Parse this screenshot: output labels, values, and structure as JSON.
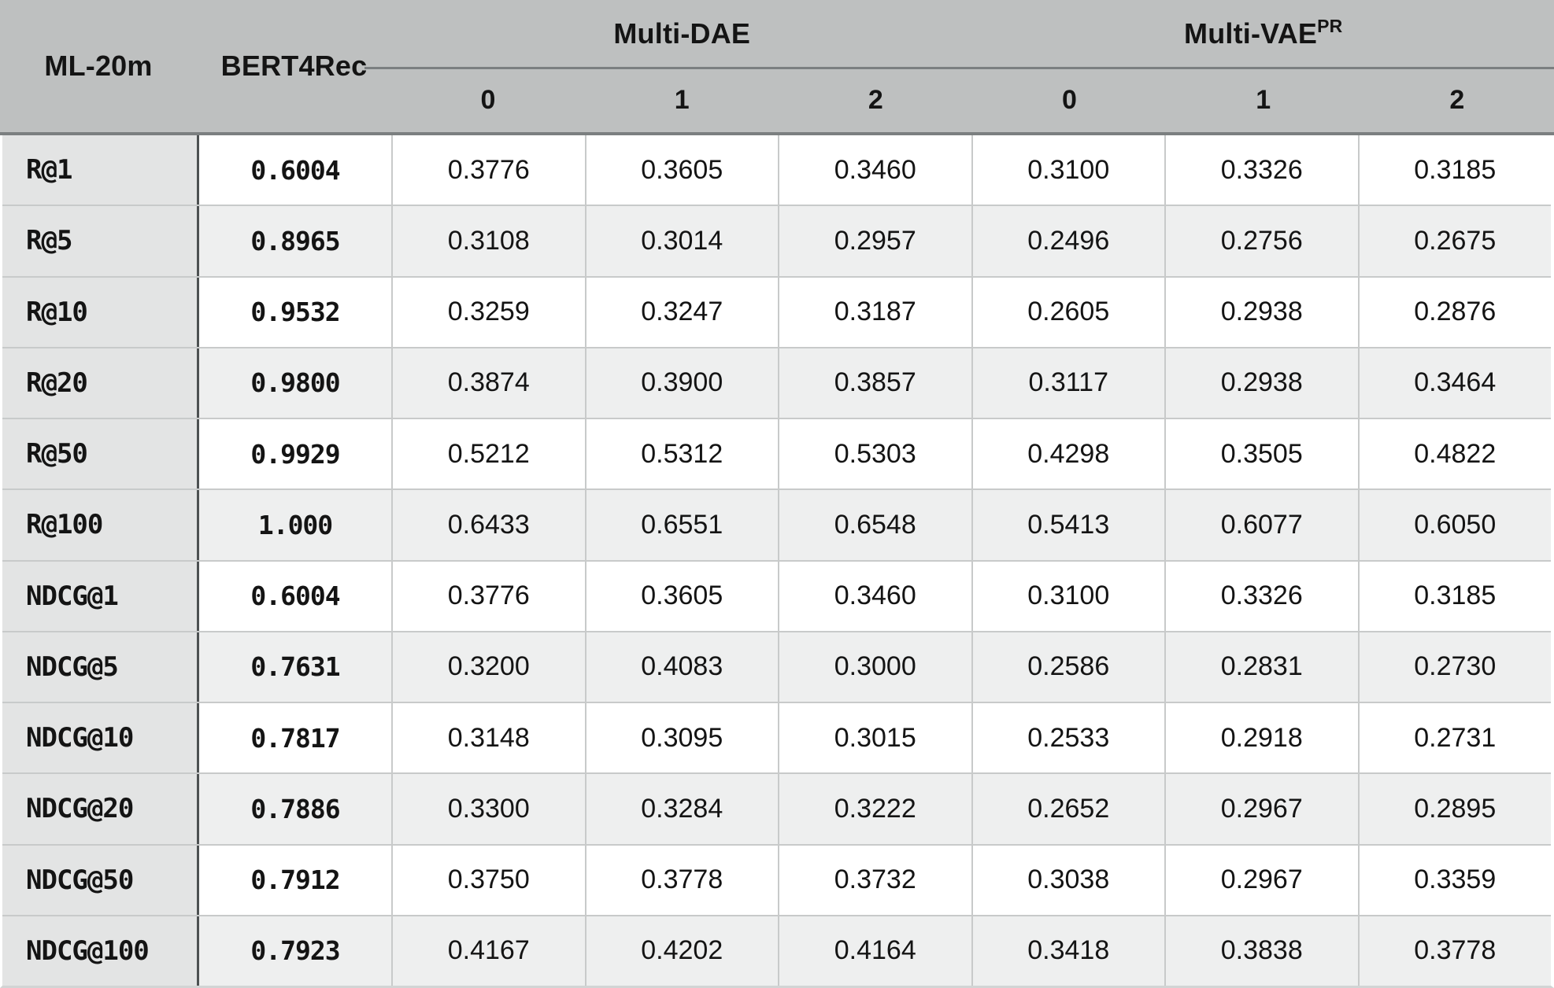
{
  "table": {
    "dataset_label": "ML-20m",
    "baseline_label": "BERT4Rec",
    "groups": [
      {
        "label": "Multi-DAE",
        "sup": "",
        "subcols": [
          "0",
          "1",
          "2"
        ]
      },
      {
        "label": "Multi-VAE",
        "sup": "PR",
        "subcols": [
          "0",
          "1",
          "2"
        ]
      }
    ],
    "rows": [
      {
        "metric": "R@1",
        "bert4rec": "0.6004",
        "values": [
          "0.3776",
          "0.3605",
          "0.3460",
          "0.3100",
          "0.3326",
          "0.3185"
        ]
      },
      {
        "metric": "R@5",
        "bert4rec": "0.8965",
        "values": [
          "0.3108",
          "0.3014",
          "0.2957",
          "0.2496",
          "0.2756",
          "0.2675"
        ]
      },
      {
        "metric": "R@10",
        "bert4rec": "0.9532",
        "values": [
          "0.3259",
          "0.3247",
          "0.3187",
          "0.2605",
          "0.2938",
          "0.2876"
        ]
      },
      {
        "metric": "R@20",
        "bert4rec": "0.9800",
        "values": [
          "0.3874",
          "0.3900",
          "0.3857",
          "0.3117",
          "0.2938",
          "0.3464"
        ]
      },
      {
        "metric": "R@50",
        "bert4rec": "0.9929",
        "values": [
          "0.5212",
          "0.5312",
          "0.5303",
          "0.4298",
          "0.3505",
          "0.4822"
        ]
      },
      {
        "metric": "R@100",
        "bert4rec": "1.000",
        "values": [
          "0.6433",
          "0.6551",
          "0.6548",
          "0.5413",
          "0.6077",
          "0.6050"
        ]
      },
      {
        "metric": "NDCG@1",
        "bert4rec": "0.6004",
        "values": [
          "0.3776",
          "0.3605",
          "0.3460",
          "0.3100",
          "0.3326",
          "0.3185"
        ]
      },
      {
        "metric": "NDCG@5",
        "bert4rec": "0.7631",
        "values": [
          "0.3200",
          "0.4083",
          "0.3000",
          "0.2586",
          "0.2831",
          "0.2730"
        ]
      },
      {
        "metric": "NDCG@10",
        "bert4rec": "0.7817",
        "values": [
          "0.3148",
          "0.3095",
          "0.3015",
          "0.2533",
          "0.2918",
          "0.2731"
        ]
      },
      {
        "metric": "NDCG@20",
        "bert4rec": "0.7886",
        "values": [
          "0.3300",
          "0.3284",
          "0.3222",
          "0.2652",
          "0.2967",
          "0.2895"
        ]
      },
      {
        "metric": "NDCG@50",
        "bert4rec": "0.7912",
        "values": [
          "0.3750",
          "0.3778",
          "0.3732",
          "0.3038",
          "0.2967",
          "0.3359"
        ]
      },
      {
        "metric": "NDCG@100",
        "bert4rec": "0.7923",
        "values": [
          "0.4167",
          "0.4202",
          "0.4164",
          "0.3418",
          "0.3838",
          "0.3778"
        ]
      }
    ]
  },
  "colors": {
    "header_bg": "#bec0c0",
    "header_rule": "#7b7f80",
    "metric_col_bg": "#e3e4e4",
    "alt_row_bg": "#eeefef",
    "grid_line": "#c8caca",
    "metric_divider": "#4d5152"
  },
  "chart_data": {
    "type": "table",
    "title": "ML-20m results",
    "columns": [
      "ML-20m",
      "BERT4Rec",
      "Multi-DAE 0",
      "Multi-DAE 1",
      "Multi-DAE 2",
      "Multi-VAE PR 0",
      "Multi-VAE PR 1",
      "Multi-VAE PR 2"
    ],
    "rows": [
      [
        "R@1",
        0.6004,
        0.3776,
        0.3605,
        0.346,
        0.31,
        0.3326,
        0.3185
      ],
      [
        "R@5",
        0.8965,
        0.3108,
        0.3014,
        0.2957,
        0.2496,
        0.2756,
        0.2675
      ],
      [
        "R@10",
        0.9532,
        0.3259,
        0.3247,
        0.3187,
        0.2605,
        0.2938,
        0.2876
      ],
      [
        "R@20",
        0.98,
        0.3874,
        0.39,
        0.3857,
        0.3117,
        0.2938,
        0.3464
      ],
      [
        "R@50",
        0.9929,
        0.5212,
        0.5312,
        0.5303,
        0.4298,
        0.3505,
        0.4822
      ],
      [
        "R@100",
        1.0,
        0.6433,
        0.6551,
        0.6548,
        0.5413,
        0.6077,
        0.605
      ],
      [
        "NDCG@1",
        0.6004,
        0.3776,
        0.3605,
        0.346,
        0.31,
        0.3326,
        0.3185
      ],
      [
        "NDCG@5",
        0.7631,
        0.32,
        0.4083,
        0.3,
        0.2586,
        0.2831,
        0.273
      ],
      [
        "NDCG@10",
        0.7817,
        0.3148,
        0.3095,
        0.3015,
        0.2533,
        0.2918,
        0.2731
      ],
      [
        "NDCG@20",
        0.7886,
        0.33,
        0.3284,
        0.3222,
        0.2652,
        0.2967,
        0.2895
      ],
      [
        "NDCG@50",
        0.7912,
        0.375,
        0.3778,
        0.3732,
        0.3038,
        0.2967,
        0.3359
      ],
      [
        "NDCG@100",
        0.7923,
        0.4167,
        0.4202,
        0.4164,
        0.3418,
        0.3838,
        0.3778
      ]
    ]
  }
}
